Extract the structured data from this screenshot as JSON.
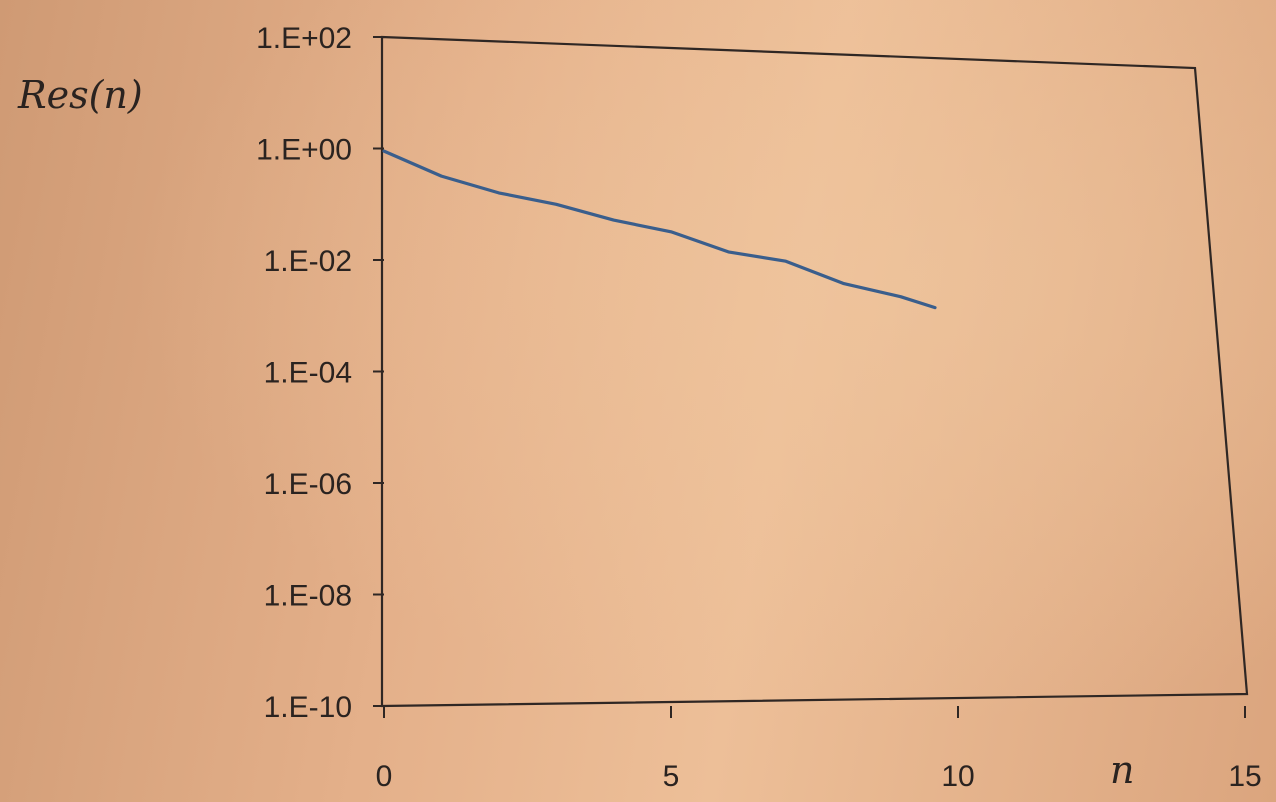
{
  "chart_data": {
    "type": "line",
    "ylabel": "Res(n)",
    "xlabel": "n",
    "yscale": "log",
    "xlim": [
      0,
      15
    ],
    "ylim": [
      1e-10,
      100
    ],
    "x_ticks": [
      0,
      5,
      10,
      15
    ],
    "x_tick_labels": [
      "0",
      "5",
      "10",
      "15"
    ],
    "y_ticks": [
      100,
      1,
      0.01,
      0.0001,
      1e-06,
      1e-08,
      1e-10
    ],
    "y_tick_labels": [
      "1.E+02",
      "1.E+00",
      "1.E-02",
      "1.E-04",
      "1.E-06",
      "1.E-08",
      "1.E-10"
    ],
    "grid": false,
    "legend": "none",
    "series": [
      {
        "x": [
          0,
          1,
          2,
          3,
          4,
          5,
          6,
          7,
          8,
          9,
          9.6
        ],
        "y": [
          0.9,
          0.32,
          0.16,
          0.1,
          0.052,
          0.032,
          0.014,
          0.0095,
          0.0038,
          0.0022,
          0.0014
        ],
        "color": "#3a5e8c"
      }
    ]
  }
}
